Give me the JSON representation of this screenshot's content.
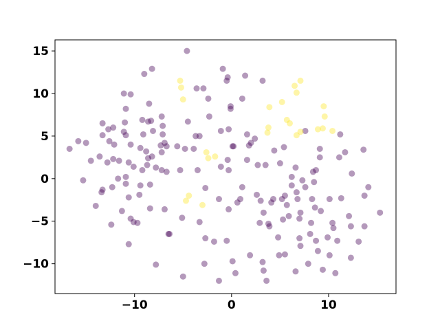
{
  "chart_data": {
    "type": "scatter",
    "xlim": [
      -18.2,
      16.95
    ],
    "ylim": [
      -13.5,
      16.3
    ],
    "xticks": [
      {
        "value": -10,
        "label": "−10"
      },
      0,
      10
    ],
    "yticks": [
      {
        "value": -10,
        "label": "−10"
      },
      {
        "value": -5,
        "label": "−5"
      },
      0,
      5,
      10,
      15
    ],
    "alpha": 0.4,
    "series": [
      {
        "color": "#440154",
        "x": [
          -16.7,
          -15.8,
          -15,
          -15.3,
          -14.5,
          -14,
          -13.4,
          -13.3,
          -13.6,
          -13.3,
          -12.7,
          -12.2,
          -13.3,
          -12.6,
          -12.1,
          -12.8,
          -12.2,
          -11.6,
          -11.7,
          -12.3,
          -12.4,
          -11.3,
          -10.9,
          -10.9,
          -10.9,
          -11.1,
          -10.4,
          -11,
          -11.1,
          -10.9,
          -10.4,
          -10.6,
          -10.1,
          -10.6,
          -10.4,
          -10.1,
          -10.6,
          -9.7,
          -9.5,
          -9.4,
          -9.2,
          -9,
          -8.2,
          -8.5,
          -9.2,
          -8.6,
          -8.1,
          -8.3,
          -9.1,
          -9.4,
          -8.8,
          -8.6,
          -8.2,
          -8.7,
          -8.4,
          -7.8,
          -8.4,
          -7.2,
          -7.1,
          -7.1,
          -6.9,
          -6.7,
          -7.3,
          -7.2,
          -7.2,
          -6.7,
          -6.9,
          -7.8,
          -6.5,
          -6.4,
          -5.1,
          -5,
          -4.6,
          -4.5,
          -5.6,
          -5.3,
          -3.6,
          -2.9,
          -2.4,
          -3.7,
          -3.3,
          -4.8,
          -3.9,
          -3.5,
          -2.7,
          -3.3,
          -2.7,
          -2.8,
          -1.8,
          -2.3,
          -1.3,
          -1.3,
          -1.1,
          -1.1,
          -0.9,
          -0.4,
          -0.5,
          -0.1,
          -0.1,
          -0.3,
          0.1,
          -0.4,
          -0.3,
          0.2,
          0.4,
          0.1,
          -0.5,
          -0.3,
          0.6,
          0.9,
          1.1,
          1.1,
          1.4,
          1.6,
          1.6,
          1.8,
          2,
          2.4,
          2.7,
          2.6,
          3,
          3.2,
          3.5,
          1.9,
          3.2,
          3.3,
          3.6,
          2.9,
          3.3,
          3.8,
          4.1,
          4.3,
          3.9,
          4.4,
          5,
          5.4,
          4.8,
          4.9,
          5.5,
          5.3,
          5.5,
          5.7,
          5.2,
          5.9,
          6.2,
          6.2,
          6.6,
          6.7,
          6.8,
          7.1,
          7,
          6.6,
          7,
          7.1,
          7.3,
          7.6,
          7.6,
          7.9,
          8.1,
          8.3,
          8.5,
          8.4,
          8.7,
          8.2,
          8.6,
          8.7,
          8.9,
          9.1,
          9.1,
          9.2,
          9.4,
          9.9,
          10.1,
          10.1,
          10.4,
          10.5,
          10.7,
          10.9,
          11.1,
          11.2,
          11.3,
          11.7,
          12.1,
          12.3,
          12.3,
          12.4,
          13.1,
          13.6,
          13.7,
          14.1,
          15.3,
          13.7
        ],
        "y": [
          3.5,
          4.4,
          4.2,
          -0.2,
          2.1,
          -3.2,
          -1.6,
          -1.3,
          2.6,
          6.5,
          5.8,
          6,
          5.1,
          4.4,
          4,
          1.9,
          2.3,
          2.1,
          0,
          -1,
          -5.4,
          -3.8,
          0.2,
          -0.6,
          8.2,
          10,
          9.9,
          6.6,
          5.5,
          5.1,
          4,
          1.9,
          1.4,
          -2.2,
          -4.7,
          -5.1,
          -7.7,
          -5.2,
          -1.9,
          -0.8,
          1,
          12.3,
          12.9,
          8.8,
          6.9,
          6.7,
          5.6,
          6.8,
          5.2,
          3.6,
          3.2,
          2.4,
          2.6,
          1.6,
          -0.7,
          1.3,
          -3.5,
          7.3,
          6.2,
          5.2,
          4.2,
          3.8,
          3.9,
          3.1,
          1,
          0.8,
          -3.6,
          -10.1,
          -6.5,
          -6.5,
          -4.6,
          -11.5,
          15,
          6.7,
          3.8,
          1,
          10.6,
          10.6,
          9.4,
          5,
          5,
          3.5,
          3.5,
          1,
          -1.1,
          -5.1,
          -7,
          -10,
          -7.4,
          7.3,
          -2.4,
          -12,
          1.4,
          5.6,
          12.9,
          11.9,
          11.5,
          8.2,
          8.5,
          5.8,
          3.8,
          2.2,
          1,
          3.8,
          -11.1,
          -9.7,
          -7.3,
          -3.6,
          -2.8,
          -2.4,
          -1,
          9.4,
          12.1,
          5.2,
          2.2,
          3.9,
          4.2,
          4.7,
          1.6,
          -1.9,
          -2.6,
          11.5,
          1.6,
          -9,
          -9.8,
          -10.8,
          -12,
          -5.2,
          -4,
          -5.3,
          -2.8,
          -2.4,
          -5.6,
          3.3,
          1.8,
          3.7,
          -6.9,
          -9,
          -8.9,
          -4.8,
          -2,
          -3.1,
          -2.4,
          -4.4,
          0.2,
          -0.8,
          1.3,
          -1.6,
          -2.4,
          -4,
          -4.7,
          -10.9,
          -7,
          -7.9,
          -0.2,
          -1,
          5.6,
          -10,
          -6.5,
          -2.4,
          -0.4,
          0.8,
          1,
          -5.2,
          -3.4,
          -7.3,
          -8.5,
          3.5,
          2.5,
          -3.8,
          -10.7,
          -6.9,
          -9,
          -2.4,
          -5.2,
          -5.8,
          -11.1,
          -7.3,
          2.5,
          5.2,
          -2.3,
          3.1,
          -4.4,
          -5.6,
          -9.3,
          0.6,
          -7.4,
          3.4,
          -5.6,
          -1,
          -4,
          -2
        ]
      },
      {
        "color": "#fde725",
        "x": [
          -5.3,
          -5.2,
          -5,
          -2.6,
          -2.4,
          -1.7,
          -4.7,
          -4.4,
          -3,
          3.9,
          5.2,
          6.5,
          7.1,
          6.7,
          9.5,
          9.6,
          9.4,
          8.9,
          10.4,
          5.7,
          6,
          3.8,
          3.7,
          6.7,
          7.1
        ],
        "y": [
          11.5,
          10.7,
          9.3,
          3.1,
          2.4,
          2.6,
          -2.6,
          -2,
          -3.1,
          8.4,
          9,
          10.9,
          11.5,
          10.1,
          8.5,
          7.3,
          5.9,
          5.8,
          5.6,
          6.9,
          6.5,
          6,
          5.4,
          5.1,
          5.5
        ]
      }
    ]
  }
}
